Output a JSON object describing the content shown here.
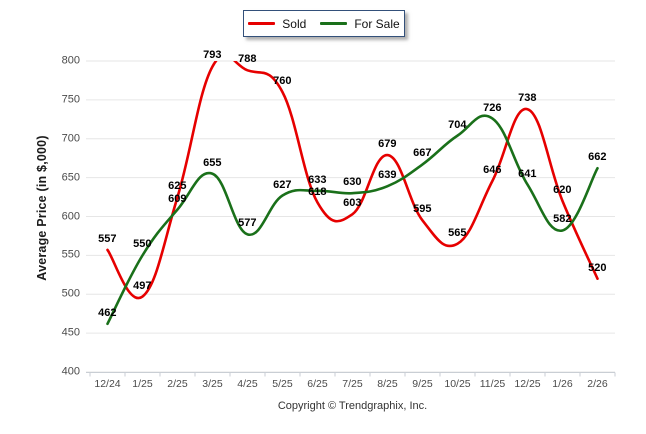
{
  "legend": {
    "items": [
      {
        "label": "Sold",
        "color": "#e60000"
      },
      {
        "label": "For Sale",
        "color": "#1a701a"
      }
    ]
  },
  "footer": {
    "copyright": "Copyright © Trendgraphix, Inc."
  },
  "colors": {
    "grid": "#e6e6e6",
    "axis": "#c9ced4",
    "tick_text": "#4a4a4a",
    "data_label": "#000000"
  },
  "chart_data": {
    "type": "line",
    "title": "",
    "xlabel": "",
    "ylabel": "Average Price (in $,000)",
    "categories": [
      "12/24",
      "1/25",
      "2/25",
      "3/25",
      "4/25",
      "5/25",
      "6/25",
      "7/25",
      "8/25",
      "9/25",
      "10/25",
      "11/25",
      "12/25",
      "1/26",
      "2/26"
    ],
    "series": [
      {
        "name": "Sold",
        "color": "#e60000",
        "values": [
          557,
          497,
          625,
          793,
          788,
          760,
          618,
          603,
          679,
          595,
          565,
          646,
          738,
          620,
          520
        ]
      },
      {
        "name": "For Sale",
        "color": "#1a701a",
        "values": [
          462,
          550,
          609,
          655,
          577,
          627,
          633,
          630,
          639,
          667,
          704,
          726,
          641,
          582,
          662
        ]
      }
    ],
    "ylim": [
      400,
      800
    ],
    "y_ticks": [
      800,
      750,
      700,
      650,
      600,
      550,
      500,
      450,
      400
    ],
    "grid": true,
    "smooth": true,
    "data_labels": true,
    "legend_position": "top"
  }
}
